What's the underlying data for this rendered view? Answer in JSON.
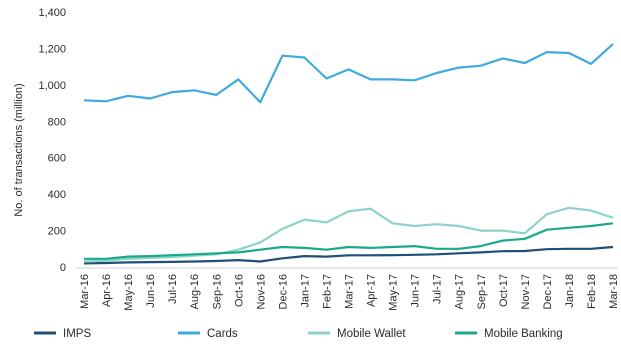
{
  "chart_data": {
    "type": "line",
    "title": "",
    "xlabel": "",
    "ylabel": "No. of transactions (million)",
    "ylim": [
      0,
      1400
    ],
    "yticks": [
      0,
      200,
      400,
      600,
      800,
      1000,
      1200,
      1400
    ],
    "ytick_labels": [
      "0",
      "200",
      "400",
      "600",
      "800",
      "1,000",
      "1,200",
      "1,400"
    ],
    "grid": false,
    "legend_position": "bottom",
    "categories": [
      "Mar-16",
      "Apr-16",
      "May-16",
      "Jun-16",
      "Jul-16",
      "Aug-16",
      "Sep-16",
      "Oct-16",
      "Nov-16",
      "Dec-16",
      "Jan-17",
      "Feb-17",
      "Mar-17",
      "Apr-17",
      "May-17",
      "Jun-17",
      "Jul-17",
      "Aug-17",
      "Sep-17",
      "Oct-17",
      "Nov-17",
      "Dec-17",
      "Jan-18",
      "Feb-18",
      "Mar-18"
    ],
    "series": [
      {
        "name": "IMPS",
        "color": "#1f4e79",
        "values": [
          20,
          22,
          25,
          27,
          28,
          30,
          33,
          38,
          30,
          48,
          60,
          57,
          64,
          64,
          65,
          67,
          70,
          75,
          80,
          87,
          88,
          98,
          100,
          100,
          110
        ]
      },
      {
        "name": "Cards",
        "color": "#3fa9e0",
        "values": [
          915,
          910,
          940,
          925,
          960,
          970,
          945,
          1030,
          905,
          1160,
          1150,
          1035,
          1085,
          1030,
          1030,
          1025,
          1065,
          1095,
          1105,
          1145,
          1120,
          1180,
          1175,
          1115,
          1225
        ]
      },
      {
        "name": "Mobile Wallet",
        "color": "#8dd3c7",
        "values": [
          30,
          35,
          45,
          50,
          55,
          62,
          70,
          95,
          135,
          210,
          260,
          245,
          305,
          320,
          240,
          225,
          235,
          225,
          200,
          200,
          185,
          290,
          325,
          310,
          270
        ]
      },
      {
        "name": "Mobile Banking",
        "color": "#1aaa87",
        "values": [
          45,
          45,
          57,
          60,
          65,
          70,
          75,
          80,
          95,
          110,
          105,
          95,
          110,
          105,
          110,
          115,
          100,
          100,
          115,
          145,
          155,
          205,
          215,
          225,
          240
        ]
      }
    ]
  }
}
